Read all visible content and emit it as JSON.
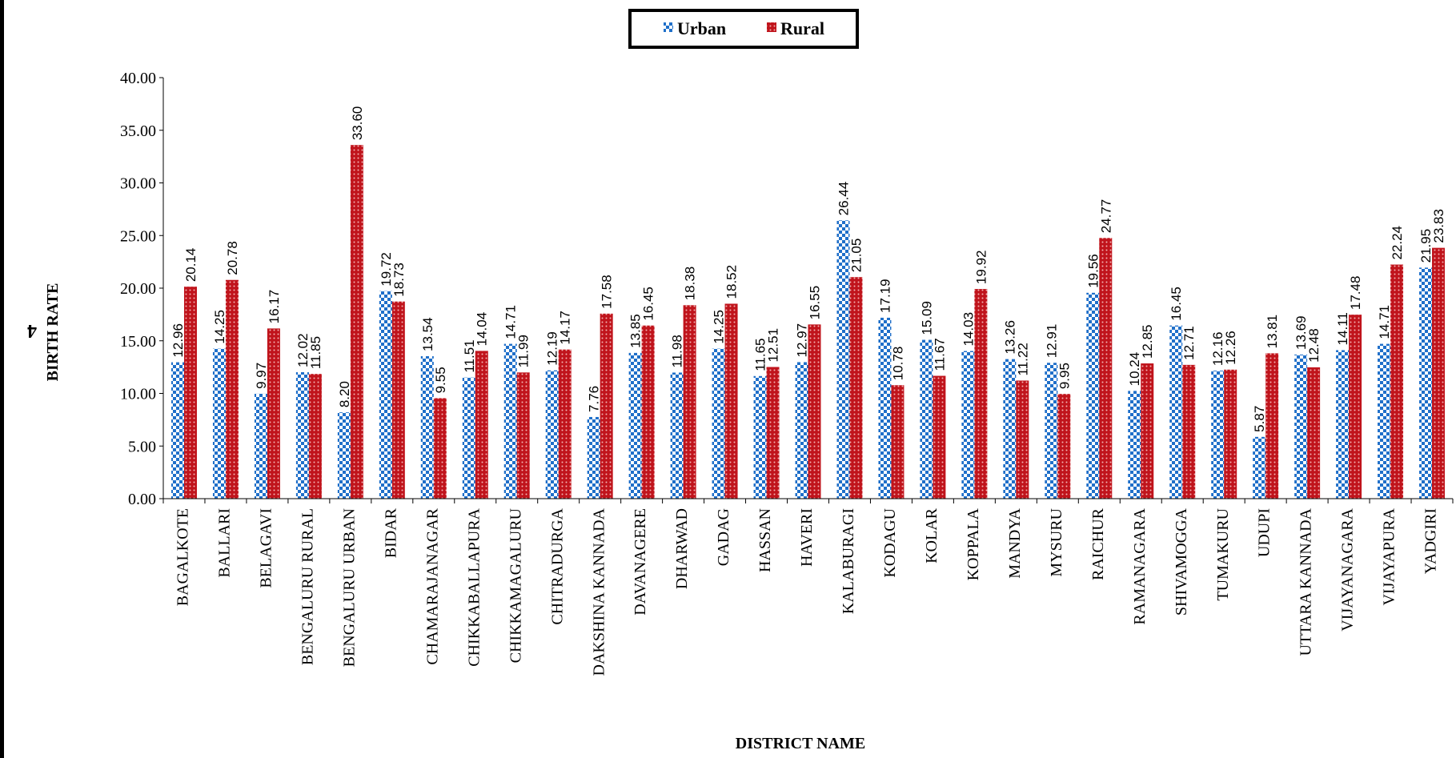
{
  "page_number": "4",
  "chart_data": {
    "type": "bar",
    "title": "",
    "xlabel": "DISTRICT NAME",
    "ylabel": "BIRTH RATE",
    "ylim": [
      0,
      40
    ],
    "yticks": [
      "0.00",
      "5.00",
      "10.00",
      "15.00",
      "20.00",
      "25.00",
      "30.00",
      "35.00",
      "40.00"
    ],
    "legend_position": "top-center",
    "grid": false,
    "categories": [
      "BAGALKOTE",
      "BALLARI",
      "BELAGAVI",
      "BENGALURU RURAL",
      "BENGALURU URBAN",
      "BIDAR",
      "CHAMARAJANAGAR",
      "CHIKKABALLAPURA",
      "CHIKKAMAGALURU",
      "CHITRADURGA",
      "DAKSHINA KANNADA",
      "DAVANAGERE",
      "DHARWAD",
      "GADAG",
      "HASSAN",
      "HAVERI",
      "KALABURAGI",
      "KODAGU",
      "KOLAR",
      "KOPPALA",
      "MANDYA",
      "MYSURU",
      "RAICHUR",
      "RAMANAGARA",
      "SHIVAMOGGA",
      "TUMAKURU",
      "UDUPI",
      "UTTARA KANNADA",
      "VIJAYANAGARA",
      "VIJAYAPURA",
      "YADGIRI"
    ],
    "series": [
      {
        "name": "Urban",
        "color": "#1f6fc9",
        "values": [
          12.96,
          14.25,
          9.97,
          12.02,
          8.2,
          19.72,
          13.54,
          11.51,
          14.71,
          12.19,
          7.76,
          13.85,
          11.98,
          14.25,
          11.65,
          12.97,
          26.44,
          17.19,
          15.09,
          14.03,
          13.26,
          12.91,
          19.56,
          10.24,
          16.45,
          12.16,
          5.87,
          13.69,
          14.11,
          14.71,
          21.95
        ],
        "labels": [
          "12.96",
          "14.25",
          "9.97",
          "12.02",
          "8.20",
          "19.72",
          "13.54",
          "11.51",
          "14.71",
          "12.19",
          "7.76",
          "13.85",
          "11.98",
          "14.25",
          "11.65",
          "12.97",
          "26.44",
          "17.19",
          "15.09",
          "14.03",
          "13.26",
          "12.91",
          "19.56",
          "10.24",
          "16.45",
          "12.16",
          "5.87",
          "13.69",
          "14.11",
          "14.71",
          "21.95"
        ]
      },
      {
        "name": "Rural",
        "color": "#c0141c",
        "values": [
          20.14,
          20.78,
          16.17,
          11.85,
          33.6,
          18.73,
          9.55,
          14.04,
          11.99,
          14.17,
          17.58,
          16.45,
          18.38,
          18.52,
          12.51,
          16.55,
          21.05,
          10.78,
          11.67,
          19.92,
          11.22,
          9.95,
          24.77,
          12.85,
          12.71,
          12.26,
          13.81,
          12.48,
          17.48,
          22.24,
          23.83
        ],
        "labels": [
          "20.14",
          "20.78",
          "16.17",
          "11.85",
          "33.60",
          "18.73",
          "9.55",
          "14.04",
          "11.99",
          "14.17",
          "17.58",
          "16.45",
          "18.38",
          "18.52",
          "12.51",
          "16.55",
          "21.05",
          "10.78",
          "11.67",
          "19.92",
          "11.22",
          "9.95",
          "24.77",
          "12.85",
          "12.71",
          "12.26",
          "13.81",
          "12.48",
          "17.48",
          "22.24",
          "23.83"
        ]
      }
    ]
  }
}
